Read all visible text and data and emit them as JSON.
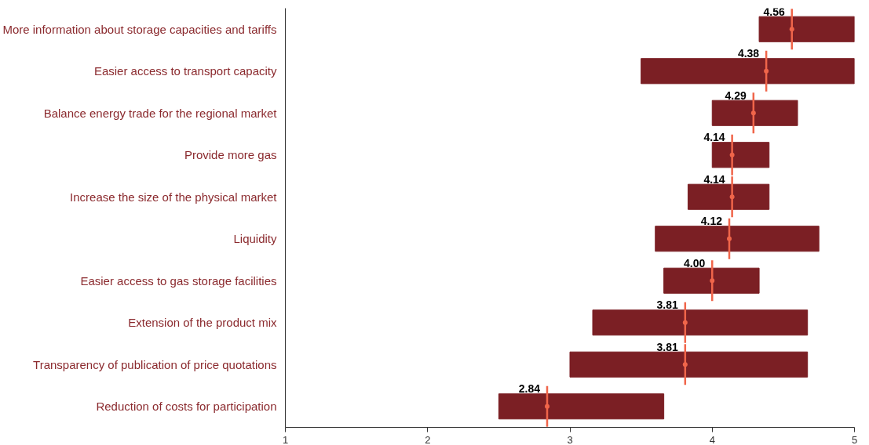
{
  "chart_data": {
    "type": "bar",
    "orientation": "horizontal",
    "categories": [
      "More information about storage capacities and tariffs",
      "Easier access to transport capacity",
      "Balance energy trade for the regional market",
      "Provide more gas",
      "Increase the size of the physical market",
      "Liquidity",
      "Easier access to gas storage facilities",
      "Extension of the product mix",
      "Transparency of publication of price quotations",
      "Reduction of costs for participation"
    ],
    "series": [
      {
        "type": "bar",
        "color": "#7b1f24",
        "base": [
          4.33,
          3.5,
          4.0,
          4.0,
          3.83,
          3.6,
          3.66,
          3.16,
          3.0,
          2.5
        ],
        "values": [
          0.67,
          1.5,
          0.6,
          0.4,
          0.57,
          1.15,
          0.67,
          1.51,
          1.67,
          1.16
        ]
      },
      {
        "type": "scatter",
        "color": "#f0654a",
        "values": [
          4.56,
          4.38,
          4.29,
          4.14,
          4.14,
          4.12,
          4.0,
          3.81,
          3.81,
          2.84
        ],
        "value_labels": [
          "4.56",
          "4.38",
          "4.29",
          "4.14",
          "4.14",
          "4.12",
          "4.00",
          "3.81",
          "3.81",
          "2.84"
        ]
      }
    ],
    "xlim": [
      1,
      5
    ],
    "xticks": [
      1,
      2,
      3,
      4,
      5
    ],
    "grid": false
  }
}
